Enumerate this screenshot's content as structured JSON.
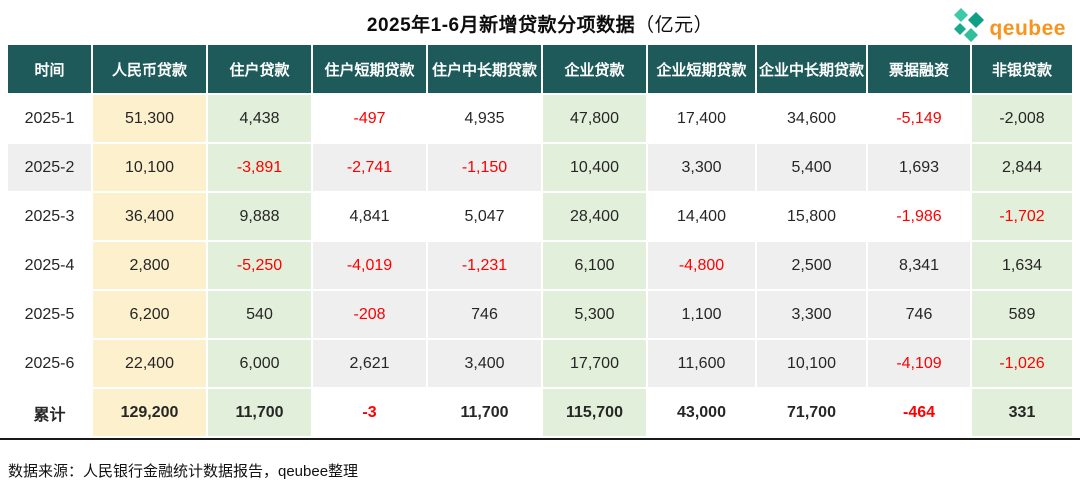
{
  "title": {
    "main": "2025年1-6月新增贷款分项数据",
    "unit": "（亿元）"
  },
  "logo": {
    "text": "qeubee",
    "icon": "diamond-cluster-icon"
  },
  "source_note": "数据来源：人民银行金融统计数据报告，qeubee整理",
  "colors": {
    "header_bg": "#1E5A5A",
    "yellow_col": "#FDF0CD",
    "green_col": "#E2EFDA",
    "row_shade": "#EFEFEF",
    "negative_red": "#FE0000",
    "logo_orange": "#F7941D",
    "logo_green_1": "#3EC9A7",
    "logo_green_2": "#0F9F85",
    "logo_green_3": "#17AB8D",
    "logo_green_4": "#2FBF9C"
  },
  "table": {
    "columns": [
      {
        "label": "时间",
        "type": "time"
      },
      {
        "label": "人民币贷款",
        "type": "yellow"
      },
      {
        "label": "住户贷款",
        "type": "green"
      },
      {
        "label": "住户短期贷款",
        "type": "plain"
      },
      {
        "label": "住户中长期贷款",
        "type": "plain"
      },
      {
        "label": "企业贷款",
        "type": "green"
      },
      {
        "label": "企业短期贷款",
        "type": "plain"
      },
      {
        "label": "企业中长期贷款",
        "type": "plain"
      },
      {
        "label": "票据融资",
        "type": "plain"
      },
      {
        "label": "非银贷款",
        "type": "green"
      }
    ],
    "rows": [
      {
        "label": "2025-1",
        "shaded": false,
        "label_shaded": false,
        "bold": false,
        "cells": [
          {
            "v": "51,300"
          },
          {
            "v": "4,438"
          },
          {
            "v": "-497",
            "red": true
          },
          {
            "v": "4,935"
          },
          {
            "v": "47,800"
          },
          {
            "v": "17,400"
          },
          {
            "v": "34,600"
          },
          {
            "v": "-5,149",
            "red": true
          },
          {
            "v": "-2,008"
          }
        ]
      },
      {
        "label": "2025-2",
        "shaded": true,
        "label_shaded": true,
        "bold": false,
        "cells": [
          {
            "v": "10,100"
          },
          {
            "v": "-3,891",
            "red": true
          },
          {
            "v": "-2,741",
            "red": true
          },
          {
            "v": "-1,150",
            "red": true
          },
          {
            "v": "10,400"
          },
          {
            "v": "3,300"
          },
          {
            "v": "5,400"
          },
          {
            "v": "1,693"
          },
          {
            "v": "2,844"
          }
        ]
      },
      {
        "label": "2025-3",
        "shaded": false,
        "label_shaded": false,
        "bold": false,
        "cells": [
          {
            "v": "36,400"
          },
          {
            "v": "9,888"
          },
          {
            "v": "4,841"
          },
          {
            "v": "5,047"
          },
          {
            "v": "28,400"
          },
          {
            "v": "14,400"
          },
          {
            "v": "15,800"
          },
          {
            "v": "-1,986",
            "red": true
          },
          {
            "v": "-1,702",
            "red": true
          }
        ]
      },
      {
        "label": "2025-4",
        "shaded": true,
        "label_shaded": false,
        "bold": false,
        "cells": [
          {
            "v": "2,800"
          },
          {
            "v": "-5,250",
            "red": true
          },
          {
            "v": "-4,019",
            "red": true
          },
          {
            "v": "-1,231",
            "red": true
          },
          {
            "v": "6,100"
          },
          {
            "v": "-4,800",
            "red": true
          },
          {
            "v": "2,500"
          },
          {
            "v": "8,341"
          },
          {
            "v": "1,634"
          }
        ]
      },
      {
        "label": "2025-5",
        "shaded": true,
        "label_shaded": false,
        "bold": false,
        "cells": [
          {
            "v": "6,200"
          },
          {
            "v": "540"
          },
          {
            "v": "-208",
            "red": true
          },
          {
            "v": "746"
          },
          {
            "v": "5,300"
          },
          {
            "v": "1,100"
          },
          {
            "v": "3,300"
          },
          {
            "v": "746"
          },
          {
            "v": "589"
          }
        ]
      },
      {
        "label": "2025-6",
        "shaded": true,
        "label_shaded": false,
        "bold": false,
        "cells": [
          {
            "v": "22,400"
          },
          {
            "v": "6,000"
          },
          {
            "v": "2,621"
          },
          {
            "v": "3,400"
          },
          {
            "v": "17,700"
          },
          {
            "v": "11,600"
          },
          {
            "v": "10,100"
          },
          {
            "v": "-4,109",
            "red": true
          },
          {
            "v": "-1,026",
            "red": true
          }
        ]
      },
      {
        "label": "累计",
        "shaded": false,
        "label_shaded": false,
        "bold": true,
        "cells": [
          {
            "v": "129,200"
          },
          {
            "v": "11,700"
          },
          {
            "v": "-3",
            "red": true
          },
          {
            "v": "11,700"
          },
          {
            "v": "115,700"
          },
          {
            "v": "43,000"
          },
          {
            "v": "71,700"
          },
          {
            "v": "-464",
            "red": true
          },
          {
            "v": "331"
          }
        ]
      }
    ]
  },
  "chart_data": {
    "type": "table",
    "title": "2025年1-6月新增贷款分项数据（亿元）",
    "unit": "亿元",
    "columns": [
      "时间",
      "人民币贷款",
      "住户贷款",
      "住户短期贷款",
      "住户中长期贷款",
      "企业贷款",
      "企业短期贷款",
      "企业中长期贷款",
      "票据融资",
      "非银贷款"
    ],
    "rows": [
      [
        "2025-1",
        51300,
        4438,
        -497,
        4935,
        47800,
        17400,
        34600,
        -5149,
        -2008
      ],
      [
        "2025-2",
        10100,
        -3891,
        -2741,
        -1150,
        10400,
        3300,
        5400,
        1693,
        2844
      ],
      [
        "2025-3",
        36400,
        9888,
        4841,
        5047,
        28400,
        14400,
        15800,
        -1986,
        -1702
      ],
      [
        "2025-4",
        2800,
        -5250,
        -4019,
        -1231,
        6100,
        -4800,
        2500,
        8341,
        1634
      ],
      [
        "2025-5",
        6200,
        540,
        -208,
        746,
        5300,
        1100,
        3300,
        746,
        589
      ],
      [
        "2025-6",
        22400,
        6000,
        2621,
        3400,
        17700,
        11600,
        10100,
        -4109,
        -1026
      ],
      [
        "累计",
        129200,
        11700,
        -3,
        11700,
        115700,
        43000,
        71700,
        -464,
        331
      ]
    ],
    "source": "数据来源：人民银行金融统计数据报告，qeubee整理"
  }
}
